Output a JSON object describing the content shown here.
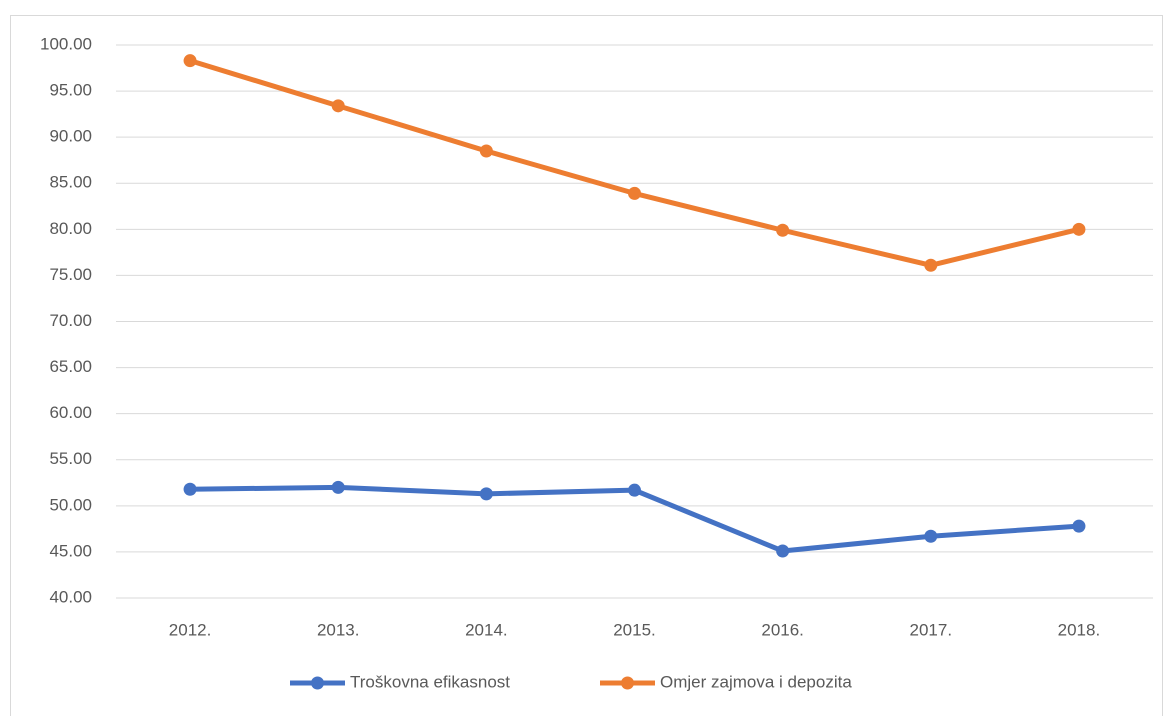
{
  "chart_data": {
    "type": "line",
    "categories": [
      "2012.",
      "2013.",
      "2014.",
      "2015.",
      "2016.",
      "2017.",
      "2018."
    ],
    "series": [
      {
        "name": "Troškovna efikasnost",
        "color": "#4472c4",
        "values": [
          51.8,
          52.0,
          51.3,
          51.7,
          45.1,
          46.7,
          47.8
        ]
      },
      {
        "name": "Omjer zajmova i depozita",
        "color": "#ed7d31",
        "values": [
          98.3,
          93.4,
          88.5,
          83.9,
          79.9,
          76.1,
          80.0
        ]
      }
    ],
    "ylim": [
      40,
      100
    ],
    "yticks": [
      {
        "value": 40,
        "label": "40.00"
      },
      {
        "value": 45,
        "label": "45.00"
      },
      {
        "value": 50,
        "label": "50.00"
      },
      {
        "value": 55,
        "label": "55.00"
      },
      {
        "value": 60,
        "label": "60.00"
      },
      {
        "value": 65,
        "label": "65.00"
      },
      {
        "value": 70,
        "label": "70.00"
      },
      {
        "value": 75,
        "label": "75.00"
      },
      {
        "value": 80,
        "label": "80.00"
      },
      {
        "value": 85,
        "label": "85.00"
      },
      {
        "value": 90,
        "label": "90.00"
      },
      {
        "value": 95,
        "label": "95.00"
      },
      {
        "value": 100,
        "label": "100.00"
      }
    ],
    "grid": true,
    "legend": "bottom"
  }
}
